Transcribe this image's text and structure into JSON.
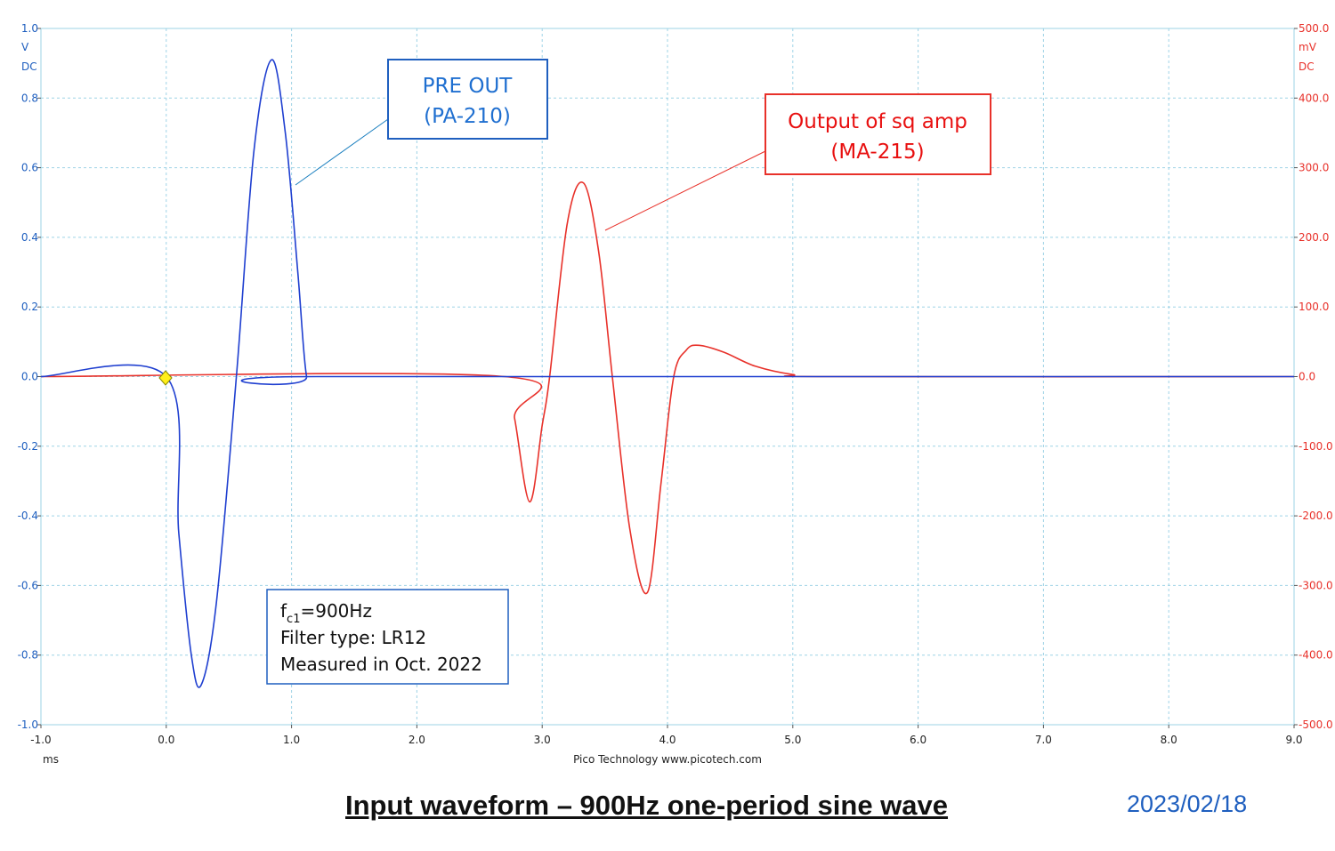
{
  "left_axis": {
    "unit": "V",
    "coupling": "DC",
    "color": "#1f5fbf",
    "ticks": [
      "1.0",
      "0.8",
      "0.6",
      "0.4",
      "0.2",
      "0.0",
      "-0.2",
      "-0.4",
      "-0.6",
      "-0.8",
      "-1.0"
    ]
  },
  "right_axis": {
    "unit": "mV",
    "coupling": "DC",
    "color": "#e8312a",
    "ticks": [
      "500.0",
      "400.0",
      "300.0",
      "200.0",
      "100.0",
      "0.0",
      "-100.0",
      "-200.0",
      "-300.0",
      "-400.0",
      "-500.0"
    ]
  },
  "x_axis": {
    "unit": "ms",
    "ticks": [
      "-1.0",
      "0.0",
      "1.0",
      "2.0",
      "3.0",
      "4.0",
      "5.0",
      "6.0",
      "7.0",
      "8.0",
      "9.0"
    ]
  },
  "credit": "Pico Technology   www.picotech.com",
  "annotations": {
    "blue_label": [
      "PRE OUT",
      "(PA-210)"
    ],
    "red_label": [
      "Output of sq amp",
      "(MA-215)"
    ],
    "info": {
      "fc_prefix": "f",
      "fc_sub": "c1",
      "fc_value": "=900Hz",
      "filter": "Filter type: LR12",
      "measured": "Measured in Oct. 2022"
    }
  },
  "footer": {
    "title": "Input waveform – 900Hz one-period sine wave",
    "date": "2023/02/18"
  },
  "chart_data": {
    "type": "line",
    "xlabel": "ms",
    "xlim": [
      -1.0,
      9.0
    ],
    "grid": true,
    "series": [
      {
        "name": "PRE OUT (PA-210)",
        "axis": "left",
        "unit": "V",
        "color": "#1f3fd0",
        "x": [
          -1.0,
          0.0,
          0.1,
          0.2,
          0.28,
          0.4,
          0.56,
          0.7,
          0.84,
          0.95,
          1.05,
          1.12,
          1.2,
          9.0
        ],
        "y": [
          0.0,
          0.0,
          -0.45,
          -0.8,
          -0.885,
          -0.65,
          0.0,
          0.65,
          0.91,
          0.7,
          0.3,
          0.0,
          0.0,
          0.0
        ]
      },
      {
        "name": "Output of sq amp (MA-215)",
        "axis": "right",
        "unit": "mV",
        "color": "#e8312a",
        "x": [
          -1.0,
          2.7,
          2.78,
          2.9,
          3.0,
          3.06,
          3.2,
          3.33,
          3.45,
          3.56,
          3.7,
          3.84,
          3.95,
          4.05,
          4.15,
          4.25,
          4.45,
          4.7,
          5.0,
          5.3,
          9.0
        ],
        "y": [
          0.0,
          0.0,
          -60,
          -180,
          -70,
          0.0,
          220,
          278,
          180,
          0.0,
          -220,
          -310,
          -150,
          0.0,
          38,
          45,
          35,
          15,
          3,
          0.0,
          0.0
        ]
      }
    ],
    "ylim_left": [
      -1.0,
      1.0
    ],
    "ylim_right": [
      -500,
      500
    ]
  }
}
